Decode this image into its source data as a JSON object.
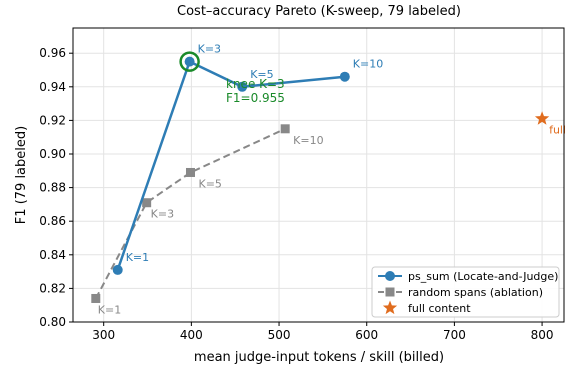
{
  "chart_data": {
    "type": "line",
    "title": "Cost–accuracy Pareto (K-sweep, 79 labeled)",
    "xlabel": "mean judge-input tokens / skill (billed)",
    "ylabel": "F1 (79 labeled)",
    "xlim": [
      265,
      825
    ],
    "ylim": [
      0.8,
      0.975
    ],
    "xticks": [
      300,
      400,
      500,
      600,
      700,
      800
    ],
    "yticks": [
      0.8,
      0.82,
      0.84,
      0.86,
      0.88,
      0.9,
      0.92,
      0.94,
      0.96
    ],
    "grid": true,
    "legend_position": "lower-right",
    "series": [
      {
        "name": "ps_sum (Locate-and-Judge)",
        "color": "#2e7db5",
        "style": "solid",
        "marker": "circle",
        "points": [
          {
            "x": 316,
            "y": 0.831,
            "label": "K=1"
          },
          {
            "x": 398,
            "y": 0.955,
            "label": "K=3"
          },
          {
            "x": 458,
            "y": 0.94,
            "label": "K=5"
          },
          {
            "x": 575,
            "y": 0.946,
            "label": "K=10"
          }
        ]
      },
      {
        "name": "random spans (ablation)",
        "color": "#888888",
        "style": "dashed",
        "marker": "square",
        "points": [
          {
            "x": 291,
            "y": 0.814,
            "label": "K=1"
          },
          {
            "x": 349,
            "y": 0.871,
            "label": "K=3"
          },
          {
            "x": 399,
            "y": 0.889,
            "label": "K=5"
          },
          {
            "x": 507,
            "y": 0.915,
            "label": "K=10"
          }
        ]
      },
      {
        "name": "full content",
        "color": "#e06c1e",
        "style": "none",
        "marker": "star",
        "points": [
          {
            "x": 800,
            "y": 0.921,
            "label": "full"
          }
        ]
      }
    ],
    "knee": {
      "x": 398,
      "y": 0.955,
      "color": "#1a8a2a",
      "label_line1": "knee K=3",
      "label_line2": "F1=0.955"
    }
  }
}
